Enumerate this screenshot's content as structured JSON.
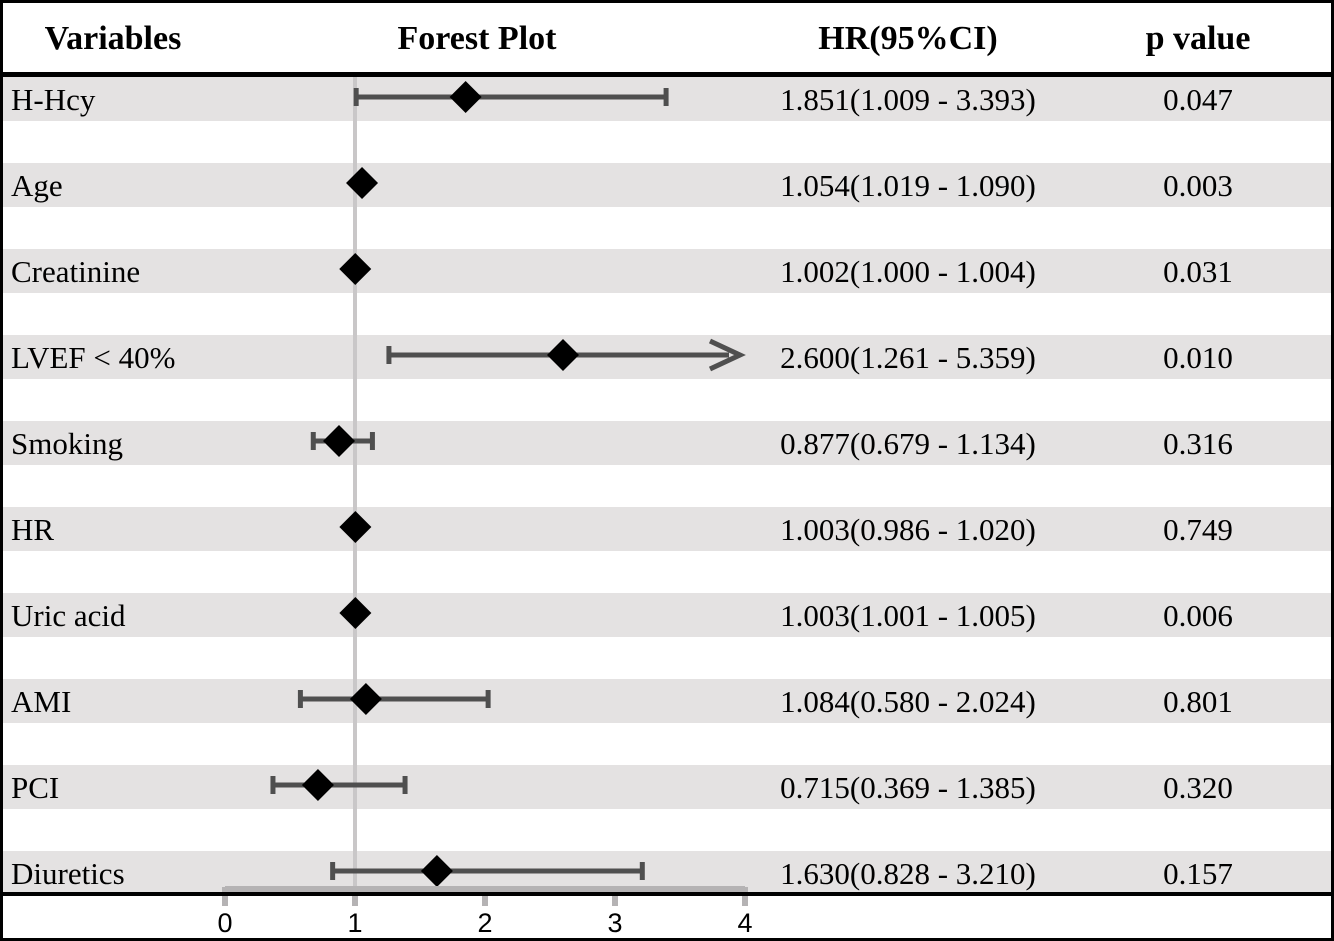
{
  "header": {
    "variables": "Variables",
    "forest_plot": "Forest Plot",
    "hr_ci": "HR(95%CI)",
    "p_value": "p value"
  },
  "colors": {
    "row_stripe": "#e4e2e2",
    "error_bar": "#4f4f4f",
    "diamond": "#000000",
    "reference_line": "#c9c7c8",
    "axis_bracket": "#b5b3b4",
    "rule": "#000000"
  },
  "chart_data": {
    "type": "scatter",
    "subtype": "forest-plot",
    "x_axis_ticks": [
      0,
      1,
      2,
      3,
      4
    ],
    "x_axis_range": [
      0,
      4
    ],
    "reference_line_x": 1,
    "legend": "none",
    "grid": false,
    "rows": [
      {
        "variable": "H-Hcy",
        "hr": 1.851,
        "ci_low": 1.009,
        "ci_high": 3.393,
        "hr_ci_text": "1.851(1.009 - 3.393)",
        "p_text": "0.047",
        "arrow": false
      },
      {
        "variable": "Age",
        "hr": 1.054,
        "ci_low": 1.019,
        "ci_high": 1.09,
        "hr_ci_text": "1.054(1.019 - 1.090)",
        "p_text": "0.003",
        "arrow": false
      },
      {
        "variable": "Creatinine",
        "hr": 1.002,
        "ci_low": 1.0,
        "ci_high": 1.004,
        "hr_ci_text": "1.002(1.000 - 1.004)",
        "p_text": "0.031",
        "arrow": false
      },
      {
        "variable": "LVEF < 40%",
        "hr": 2.6,
        "ci_low": 1.261,
        "ci_high": 5.359,
        "hr_ci_text": "2.600(1.261 - 5.359)",
        "p_text": "0.010",
        "arrow": true
      },
      {
        "variable": "Smoking",
        "hr": 0.877,
        "ci_low": 0.679,
        "ci_high": 1.134,
        "hr_ci_text": "0.877(0.679 - 1.134)",
        "p_text": "0.316",
        "arrow": false
      },
      {
        "variable": "HR",
        "hr": 1.003,
        "ci_low": 0.986,
        "ci_high": 1.02,
        "hr_ci_text": "1.003(0.986 - 1.020)",
        "p_text": "0.749",
        "arrow": false
      },
      {
        "variable": "Uric acid",
        "hr": 1.003,
        "ci_low": 1.001,
        "ci_high": 1.005,
        "hr_ci_text": "1.003(1.001 - 1.005)",
        "p_text": "0.006",
        "arrow": false
      },
      {
        "variable": "AMI",
        "hr": 1.084,
        "ci_low": 0.58,
        "ci_high": 2.024,
        "hr_ci_text": "1.084(0.580 - 2.024)",
        "p_text": "0.801",
        "arrow": false
      },
      {
        "variable": "PCI",
        "hr": 0.715,
        "ci_low": 0.369,
        "ci_high": 1.385,
        "hr_ci_text": "0.715(0.369 - 1.385)",
        "p_text": "0.320",
        "arrow": false
      },
      {
        "variable": "Diuretics",
        "hr": 1.63,
        "ci_low": 0.828,
        "ci_high": 3.21,
        "hr_ci_text": "1.630(0.828 - 3.210)",
        "p_text": "0.157",
        "arrow": false
      }
    ]
  }
}
